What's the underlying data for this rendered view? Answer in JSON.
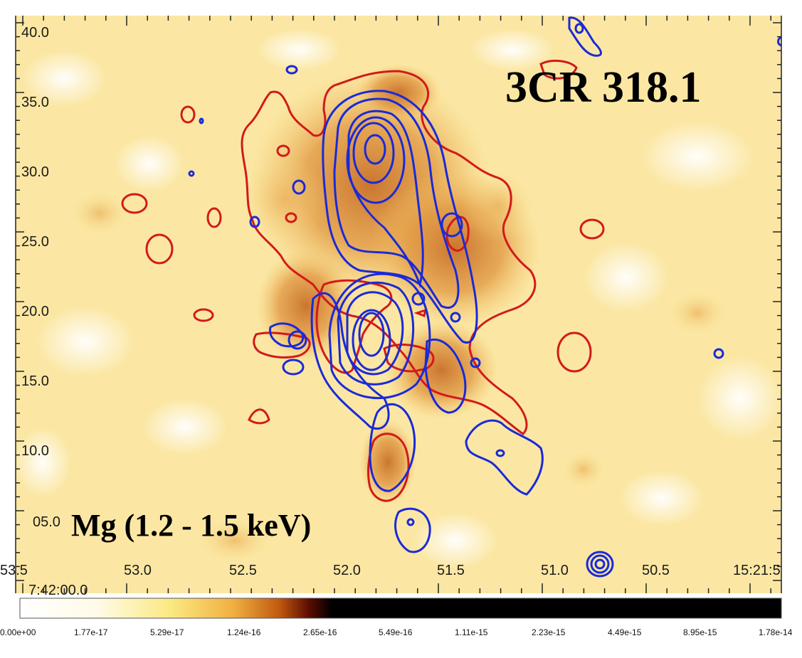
{
  "image": {
    "title_label": "3CR 318.1",
    "band_label": "Mg (1.2 - 1.5 keV)",
    "x_ticks": [
      "53.5",
      "53.0",
      "52.5",
      "52.0",
      "51.5",
      "51.0",
      "50.5",
      "15:21:5"
    ],
    "y_ticks": [
      "40.0",
      "35.0",
      "30.0",
      "25.0",
      "20.0",
      "15.0",
      "10.0",
      "05.0"
    ],
    "y_axis_extra_label": "7:42:00.0",
    "colors": {
      "background": "#fbe9a8",
      "emission_orange": "#d68a3a",
      "contour_red": "#d21a1a",
      "contour_blue": "#1a2ad8"
    }
  },
  "colorbar": {
    "tick_labels": [
      "0.00e+00",
      "1.77e-17",
      "5.29e-17",
      "1.24e-16",
      "2.65e-16",
      "5.49e-16",
      "1.11e-15",
      "2.23e-15",
      "4.49e-15",
      "8.95e-15",
      "1.78e-14"
    ]
  }
}
